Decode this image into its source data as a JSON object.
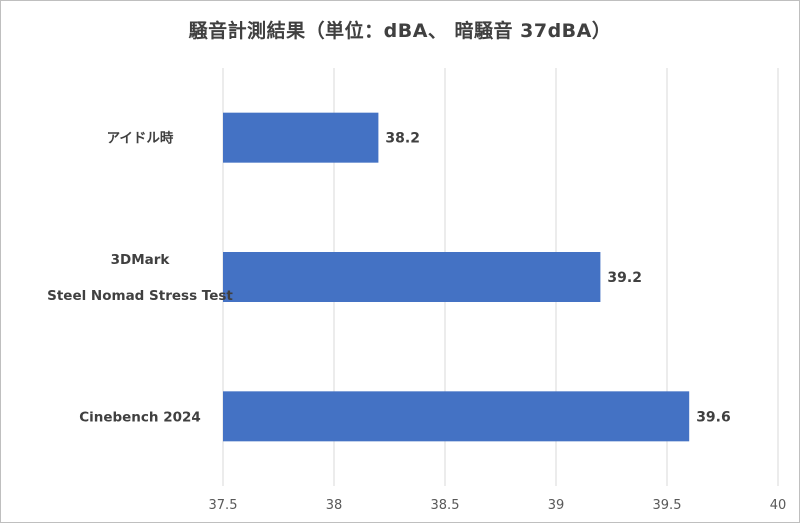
{
  "chart_data": {
    "type": "bar",
    "orientation": "horizontal",
    "title": "騒音計測結果（単位：dBA、 暗騒音 37dBA）",
    "categories": [
      [
        "アイドル時"
      ],
      [
        "3DMark",
        "Steel Nomad Stress Test"
      ],
      [
        "Cinebench 2024"
      ]
    ],
    "values": [
      38.2,
      39.2,
      39.6
    ],
    "data_labels": [
      "38.2",
      "39.2",
      "39.6"
    ],
    "xlim": [
      37.5,
      40
    ],
    "xticks": [
      37.5,
      38,
      38.5,
      39,
      39.5,
      40
    ],
    "xtick_labels": [
      "37.5",
      "38",
      "38.5",
      "39",
      "39.5",
      "40"
    ],
    "xlabel": "",
    "ylabel": "",
    "grid": true,
    "legend": "none",
    "bar_color": "#4472c4",
    "grid_color": "#d9d9d9"
  }
}
